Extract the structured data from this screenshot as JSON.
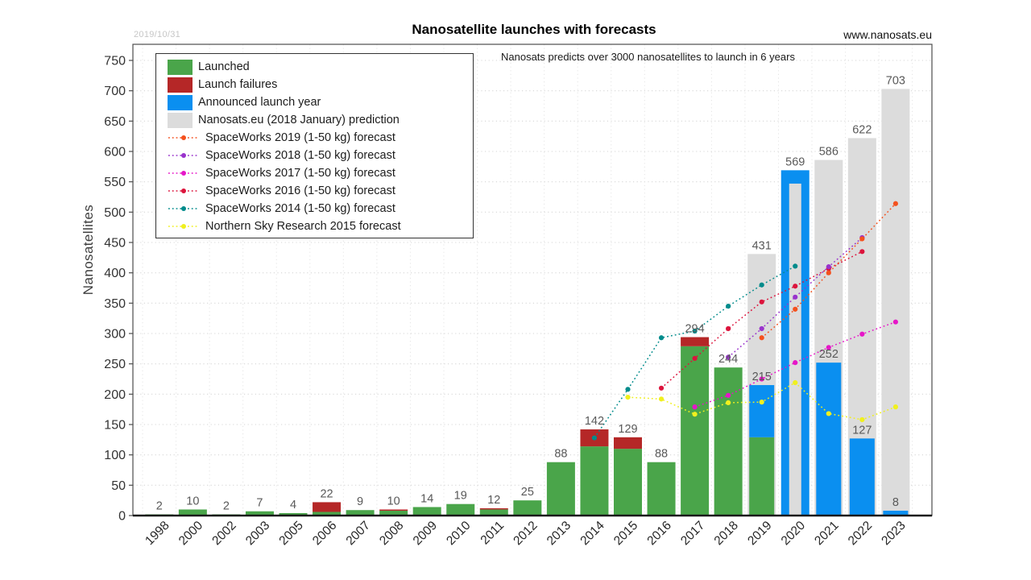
{
  "header": {
    "date_stamp": "2019/10/31",
    "title": "Nanosatellite launches with forecasts",
    "website": "www.nanosats.eu",
    "annotation": "Nanosats predicts over 3000 nanosatellites to launch in 6 years"
  },
  "chart_data": {
    "type": "bar",
    "title": "Nanosatellite launches with forecasts",
    "xlabel": "",
    "ylabel": "Nanosatellites",
    "ylim": [
      0,
      750
    ],
    "ytick_step": 50,
    "grid": "dotted",
    "legend_position": "upper-left",
    "categories": [
      "1998",
      "2000",
      "2002",
      "2003",
      "2005",
      "2006",
      "2007",
      "2008",
      "2009",
      "2010",
      "2011",
      "2012",
      "2013",
      "2014",
      "2015",
      "2016",
      "2017",
      "2018",
      "2019",
      "2020",
      "2021",
      "2022",
      "2023"
    ],
    "bars": [
      {
        "key": "launched",
        "label": "Launched",
        "color": "#4aa54a",
        "swatch": "rect",
        "values": {
          "1998": 2,
          "2000": 10,
          "2002": 2,
          "2003": 7,
          "2005": 4,
          "2006": 6,
          "2007": 9,
          "2008": 8,
          "2009": 14,
          "2010": 19,
          "2011": 10,
          "2012": 25,
          "2013": 88,
          "2014": 114,
          "2015": 110,
          "2016": 88,
          "2017": 279,
          "2018": 244,
          "2019": 129
        }
      },
      {
        "key": "failures",
        "label": "Launch failures",
        "color": "#b52727",
        "swatch": "rect",
        "values": {
          "2006": 16,
          "2008": 2,
          "2011": 2,
          "2014": 28,
          "2015": 19,
          "2017": 15
        }
      },
      {
        "key": "announced",
        "label": "Announced launch year",
        "color": "#0a8ff0",
        "swatch": "rect",
        "values": {
          "2019": 86,
          "2020": 569,
          "2021": 252,
          "2022": 127,
          "2023": 8
        }
      },
      {
        "key": "prediction",
        "label": "Nanosats.eu (2018 January) prediction",
        "color": "#dcdcdc",
        "swatch": "rect",
        "values": {
          "2019": 431,
          "2020": 547,
          "2021": 586,
          "2022": 622,
          "2023": 703
        }
      }
    ],
    "bar_totals_labeled": {
      "1998": 2,
      "2000": 10,
      "2002": 2,
      "2003": 7,
      "2005": 4,
      "2006": 22,
      "2007": 9,
      "2008": 10,
      "2009": 14,
      "2010": 19,
      "2011": 12,
      "2012": 25,
      "2013": 88,
      "2014": 142,
      "2015": 129,
      "2016": 88,
      "2017": 294,
      "2018": 244,
      "2019": 215,
      "2020": 569,
      "2021": 252,
      "2022": 127,
      "2023": 8
    },
    "prediction_labels_shown": {
      "2019": 431,
      "2021": 586,
      "2022": 622,
      "2023": 703
    },
    "forecasts": [
      {
        "name": "SpaceWorks 2019 (1-50 kg) forecast",
        "color": "#f4511e",
        "swatch": "line",
        "points": {
          "2019": 293,
          "2020": 340,
          "2021": 400,
          "2022": 456,
          "2023": 514
        }
      },
      {
        "name": "SpaceWorks 2018 (1-50 kg) forecast",
        "color": "#9932cc",
        "swatch": "line",
        "points": {
          "2018": 261,
          "2019": 308,
          "2020": 360,
          "2021": 410,
          "2022": 458
        }
      },
      {
        "name": "SpaceWorks 2017 (1-50 kg) forecast",
        "color": "#e616c8",
        "swatch": "line",
        "points": {
          "2017": 179,
          "2018": 198,
          "2019": 225,
          "2020": 252,
          "2021": 277,
          "2022": 299,
          "2023": 319
        }
      },
      {
        "name": "SpaceWorks 2016 (1-50 kg) forecast",
        "color": "#dc143c",
        "swatch": "line",
        "points": {
          "2016": 210,
          "2017": 259,
          "2018": 308,
          "2019": 352,
          "2020": 378,
          "2021": 407,
          "2022": 435
        }
      },
      {
        "name": "SpaceWorks 2014 (1-50 kg) forecast",
        "color": "#008b8b",
        "swatch": "line",
        "points": {
          "2014": 128,
          "2015": 208,
          "2016": 293,
          "2017": 304,
          "2018": 345,
          "2019": 380,
          "2020": 411
        }
      },
      {
        "name": "Northern Sky Research 2015 forecast",
        "color": "#f0f01e",
        "swatch": "line",
        "points": {
          "2015": 195,
          "2016": 192,
          "2017": 167,
          "2018": 186,
          "2019": 187,
          "2020": 219,
          "2021": 168,
          "2022": 158,
          "2023": 179
        }
      }
    ]
  }
}
